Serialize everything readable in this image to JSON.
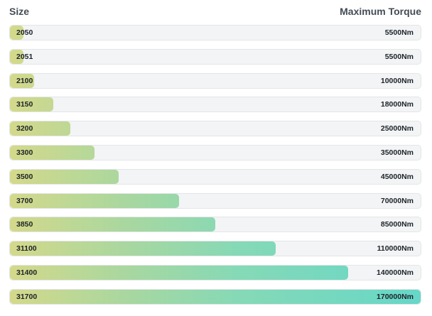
{
  "header": {
    "size_label": "Size",
    "torque_label": "Maximum Torque"
  },
  "chart_data": {
    "type": "bar",
    "orientation": "horizontal",
    "xlabel": "Maximum Torque",
    "ylabel": "Size",
    "xlim": [
      0,
      170000
    ],
    "categories": [
      "2050",
      "2051",
      "2100",
      "3150",
      "3200",
      "3300",
      "3500",
      "3700",
      "3850",
      "31100",
      "31400",
      "31700"
    ],
    "values": [
      5500,
      5500,
      10000,
      18000,
      25000,
      35000,
      45000,
      70000,
      85000,
      110000,
      140000,
      170000
    ],
    "value_labels": [
      "5500Nm",
      "5500Nm",
      "10000Nm",
      "18000Nm",
      "25000Nm",
      "35000Nm",
      "45000Nm",
      "70000Nm",
      "85000Nm",
      "110000Nm",
      "140000Nm",
      "170000Nm"
    ],
    "colors": {
      "gradient_start": "#d4d98a",
      "gradient_end": "#66d7c8",
      "track": "#f3f4f5"
    }
  }
}
